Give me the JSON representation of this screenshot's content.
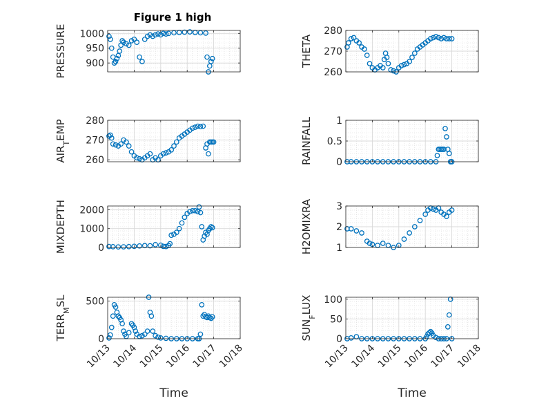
{
  "figure": {
    "title": "Figure 1 high",
    "marker_color": "#0072BD",
    "axis_color": "#262626",
    "grid_color": "#d8d8d8"
  },
  "chart_data": [
    {
      "type": "scatter",
      "ylabel": "PRESSURE",
      "xlim": [
        0,
        5
      ],
      "ylim": [
        870,
        1010
      ],
      "yticks": [
        900,
        950,
        1000
      ],
      "xticks": [
        0,
        1,
        2,
        3,
        4,
        5
      ],
      "xticklabels": [
        "",
        "",
        "",
        "",
        "",
        ""
      ],
      "x": [
        0.05,
        0.1,
        0.15,
        0.2,
        0.25,
        0.3,
        0.35,
        0.4,
        0.45,
        0.5,
        0.55,
        0.6,
        0.7,
        0.8,
        0.9,
        1.0,
        1.1,
        1.2,
        1.3,
        1.4,
        1.5,
        1.6,
        1.7,
        1.8,
        1.9,
        2.0,
        2.1,
        2.2,
        2.3,
        2.5,
        2.7,
        2.9,
        3.1,
        3.3,
        3.5,
        3.7,
        3.75,
        3.8,
        3.85,
        3.9,
        3.95
      ],
      "y": [
        990,
        980,
        950,
        920,
        900,
        905,
        915,
        925,
        940,
        960,
        975,
        970,
        965,
        960,
        975,
        980,
        970,
        920,
        905,
        980,
        990,
        995,
        990,
        995,
        998,
        995,
        1000,
        998,
        1000,
        1002,
        1003,
        1004,
        1005,
        1003,
        1002,
        1001,
        920,
        870,
        890,
        905,
        915
      ]
    },
    {
      "type": "scatter",
      "ylabel": "THETA",
      "xlim": [
        0,
        5
      ],
      "ylim": [
        260,
        280
      ],
      "yticks": [
        260,
        270,
        280
      ],
      "xticks": [
        0,
        1,
        2,
        3,
        4,
        5
      ],
      "xticklabels": [
        "",
        "",
        "",
        "",
        "",
        ""
      ],
      "x": [
        0.05,
        0.1,
        0.2,
        0.3,
        0.4,
        0.5,
        0.6,
        0.7,
        0.8,
        0.9,
        1.0,
        1.1,
        1.2,
        1.3,
        1.4,
        1.45,
        1.5,
        1.55,
        1.6,
        1.7,
        1.8,
        1.9,
        2.0,
        2.1,
        2.2,
        2.3,
        2.4,
        2.5,
        2.6,
        2.7,
        2.8,
        2.9,
        3.0,
        3.1,
        3.2,
        3.3,
        3.4,
        3.5,
        3.6,
        3.7,
        3.8,
        3.9,
        4.0
      ],
      "y": [
        272,
        274,
        276,
        276.5,
        275,
        274,
        272,
        271,
        268,
        264,
        262,
        261,
        262,
        263,
        262,
        266,
        269,
        267,
        264,
        261,
        260.5,
        260,
        262,
        263,
        263.5,
        264,
        265,
        267,
        269,
        271,
        272,
        273,
        274,
        275,
        276,
        276.5,
        277,
        276.5,
        276,
        276.5,
        276,
        276,
        276
      ]
    },
    {
      "type": "scatter",
      "ylabel": "AIR_TEMP",
      "xlim": [
        0,
        5
      ],
      "ylim": [
        259,
        280
      ],
      "yticks": [
        260,
        270,
        280
      ],
      "xticks": [
        0,
        1,
        2,
        3,
        4,
        5
      ],
      "xticklabels": [
        "",
        "",
        "",
        "",
        "",
        ""
      ],
      "x": [
        0.05,
        0.1,
        0.15,
        0.2,
        0.3,
        0.4,
        0.5,
        0.6,
        0.7,
        0.8,
        0.9,
        1.0,
        1.1,
        1.2,
        1.3,
        1.4,
        1.5,
        1.6,
        1.7,
        1.8,
        1.9,
        2.0,
        2.1,
        2.2,
        2.3,
        2.4,
        2.5,
        2.6,
        2.7,
        2.8,
        2.9,
        3.0,
        3.1,
        3.2,
        3.3,
        3.4,
        3.5,
        3.6,
        3.7,
        3.75,
        3.8,
        3.85,
        3.9,
        3.95,
        4.0
      ],
      "y": [
        272,
        272.5,
        271,
        268,
        267.5,
        267,
        268,
        270,
        269,
        267,
        264,
        262,
        261,
        260.5,
        260,
        261,
        262,
        263,
        260,
        261,
        260,
        262,
        263,
        263.5,
        264,
        265,
        267,
        269,
        271,
        272,
        273,
        274,
        275,
        276,
        276.5,
        277,
        276.8,
        277,
        266,
        268,
        263,
        269,
        269,
        269,
        269
      ]
    },
    {
      "type": "scatter",
      "ylabel": "RAINFALL",
      "xlim": [
        0,
        5
      ],
      "ylim": [
        0,
        1
      ],
      "yticks": [
        0,
        0.5,
        1
      ],
      "xticks": [
        0,
        1,
        2,
        3,
        4,
        5
      ],
      "xticklabels": [
        "",
        "",
        "",
        "",
        "",
        ""
      ],
      "x": [
        0.05,
        0.2,
        0.4,
        0.6,
        0.8,
        1.0,
        1.2,
        1.4,
        1.6,
        1.8,
        2.0,
        2.2,
        2.4,
        2.6,
        2.8,
        3.0,
        3.2,
        3.4,
        3.45,
        3.5,
        3.55,
        3.6,
        3.65,
        3.7,
        3.75,
        3.8,
        3.85,
        3.9,
        3.95,
        4.0
      ],
      "y": [
        0,
        0,
        0,
        0,
        0,
        0,
        0,
        0,
        0,
        0,
        0,
        0,
        0,
        0,
        0,
        0,
        0,
        0,
        0.15,
        0.3,
        0.3,
        0.3,
        0.3,
        0.3,
        0.8,
        0.6,
        0.3,
        0.2,
        0,
        0
      ]
    },
    {
      "type": "scatter",
      "ylabel": "MIXDEPTH",
      "xlim": [
        0,
        5
      ],
      "ylim": [
        0,
        2200
      ],
      "yticks": [
        0,
        1000,
        2000
      ],
      "xticks": [
        0,
        1,
        2,
        3,
        4,
        5
      ],
      "xticklabels": [
        "",
        "",
        "",
        "",
        "",
        ""
      ],
      "x": [
        0.05,
        0.2,
        0.4,
        0.6,
        0.8,
        1.0,
        1.2,
        1.4,
        1.6,
        1.8,
        2.0,
        2.1,
        2.2,
        2.3,
        2.35,
        2.4,
        2.5,
        2.6,
        2.7,
        2.8,
        2.9,
        3.0,
        3.1,
        3.2,
        3.3,
        3.4,
        3.45,
        3.5,
        3.55,
        3.6,
        3.65,
        3.7,
        3.75,
        3.8,
        3.85,
        3.9,
        3.95
      ],
      "y": [
        50,
        40,
        30,
        35,
        45,
        60,
        80,
        100,
        90,
        150,
        120,
        60,
        50,
        100,
        200,
        650,
        700,
        800,
        1000,
        1300,
        1600,
        1800,
        1900,
        1950,
        1950,
        1900,
        2150,
        1850,
        1100,
        400,
        600,
        800,
        700,
        900,
        1000,
        1100,
        1050
      ]
    },
    {
      "type": "scatter",
      "ylabel": "H2OMIXRA",
      "xlim": [
        0,
        5
      ],
      "ylim": [
        1,
        3
      ],
      "yticks": [
        1,
        2,
        3
      ],
      "xticks": [
        0,
        1,
        2,
        3,
        4,
        5
      ],
      "xticklabels": [
        "",
        "",
        "",
        "",
        "",
        ""
      ],
      "x": [
        0.05,
        0.2,
        0.4,
        0.6,
        0.8,
        0.9,
        1.0,
        1.2,
        1.4,
        1.6,
        1.8,
        2.0,
        2.2,
        2.4,
        2.6,
        2.8,
        3.0,
        3.1,
        3.2,
        3.3,
        3.4,
        3.5,
        3.6,
        3.7,
        3.8,
        3.9,
        4.0
      ],
      "y": [
        1.9,
        1.9,
        1.8,
        1.7,
        1.3,
        1.2,
        1.15,
        1.1,
        1.2,
        1.1,
        1.0,
        1.1,
        1.4,
        1.7,
        2.0,
        2.3,
        2.6,
        2.8,
        2.9,
        2.85,
        2.8,
        2.9,
        2.7,
        2.6,
        2.5,
        2.7,
        2.8
      ]
    },
    {
      "type": "scatter",
      "ylabel": "TERR_MSL",
      "xlim": [
        0,
        5
      ],
      "ylim": [
        0,
        550
      ],
      "yticks": [
        0,
        500
      ],
      "xticks": [
        0,
        1,
        2,
        3,
        4,
        5
      ],
      "xticklabels": [
        "10/13",
        "10/14",
        "10/15",
        "10/16",
        "10/17",
        "10/18"
      ],
      "xlabel": "Time",
      "x": [
        0.05,
        0.1,
        0.15,
        0.2,
        0.25,
        0.3,
        0.35,
        0.4,
        0.45,
        0.5,
        0.55,
        0.6,
        0.65,
        0.7,
        0.8,
        0.9,
        0.95,
        1.0,
        1.05,
        1.1,
        1.2,
        1.3,
        1.4,
        1.5,
        1.55,
        1.6,
        1.65,
        1.7,
        1.8,
        1.9,
        2.0,
        2.2,
        2.4,
        2.6,
        2.8,
        3.0,
        3.2,
        3.4,
        3.45,
        3.5,
        3.55,
        3.6,
        3.65,
        3.7,
        3.75,
        3.8,
        3.85,
        3.9,
        3.95
      ],
      "y": [
        10,
        50,
        150,
        300,
        450,
        420,
        350,
        300,
        280,
        250,
        200,
        100,
        60,
        30,
        80,
        200,
        180,
        150,
        100,
        60,
        30,
        40,
        60,
        100,
        550,
        350,
        300,
        100,
        40,
        20,
        10,
        5,
        0,
        0,
        0,
        0,
        0,
        0,
        0,
        60,
        450,
        300,
        320,
        290,
        280,
        300,
        280,
        270,
        290
      ]
    },
    {
      "type": "scatter",
      "ylabel": "SUN_FLUX",
      "xlim": [
        0,
        5
      ],
      "ylim": [
        0,
        105
      ],
      "yticks": [
        0,
        50,
        100
      ],
      "xticks": [
        0,
        1,
        2,
        3,
        4,
        5
      ],
      "xticklabels": [
        "10/13",
        "10/14",
        "10/15",
        "10/16",
        "10/17",
        "10/18"
      ],
      "xlabel": "Time",
      "x": [
        0.05,
        0.2,
        0.4,
        0.6,
        0.8,
        1.0,
        1.2,
        1.4,
        1.6,
        1.8,
        2.0,
        2.2,
        2.4,
        2.6,
        2.8,
        3.0,
        3.05,
        3.1,
        3.15,
        3.2,
        3.25,
        3.3,
        3.4,
        3.5,
        3.6,
        3.7,
        3.8,
        3.85,
        3.9,
        3.95,
        4.0
      ],
      "y": [
        0,
        2,
        5,
        0,
        0,
        0,
        0,
        0,
        0,
        0,
        0,
        0,
        0,
        0,
        0,
        0,
        5,
        12,
        15,
        18,
        14,
        8,
        3,
        0,
        0,
        0,
        0,
        30,
        60,
        100,
        0
      ]
    }
  ]
}
